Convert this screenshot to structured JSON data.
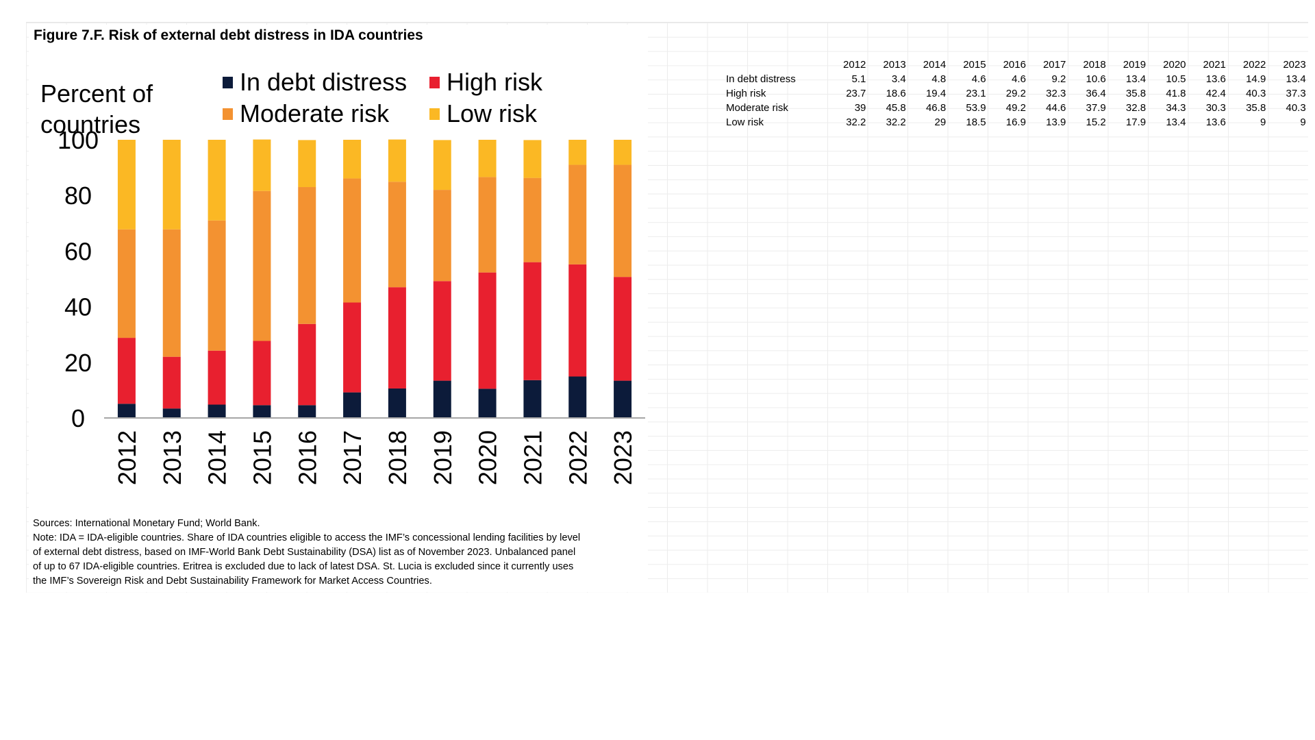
{
  "figure": {
    "title": "Figure 7.F. Risk of external debt distress in IDA countries",
    "sources": "Sources: International Monetary Fund; World Bank.",
    "note_lines": [
      "Note: IDA = IDA-eligible countries. Share of IDA countries eligible to access the IMF’s concessional lending facilities by level",
      "of external debt distress, based on IMF-World Bank Debt Sustainability (DSA) list as of November 2023. Unbalanced panel",
      "of up to 67 IDA-eligible countries. Eritrea is excluded due to lack of latest DSA. St. Lucia is excluded since it currently uses",
      "the IMF’s Sovereign Risk and Debt Sustainability Framework for Market Access Countries."
    ]
  },
  "chart_data": {
    "type": "bar",
    "stacked": true,
    "ylabel_lines": [
      "Percent of",
      "countries"
    ],
    "categories": [
      "2012",
      "2013",
      "2014",
      "2015",
      "2016",
      "2017",
      "2018",
      "2019",
      "2020",
      "2021",
      "2022",
      "2023"
    ],
    "ylim": [
      0,
      100
    ],
    "yticks": [
      0,
      20,
      40,
      60,
      80,
      100
    ],
    "grid": false,
    "legend_position": "top",
    "series": [
      {
        "name": "In debt distress",
        "color": "#0c1b3a",
        "values": [
          5.1,
          3.4,
          4.8,
          4.6,
          4.6,
          9.2,
          10.6,
          13.4,
          10.5,
          13.6,
          14.9,
          13.4
        ]
      },
      {
        "name": "High risk",
        "color": "#e8202f",
        "values": [
          23.7,
          18.6,
          19.4,
          23.1,
          29.2,
          32.3,
          36.4,
          35.8,
          41.8,
          42.4,
          40.3,
          37.3
        ]
      },
      {
        "name": "Moderate risk",
        "color": "#f39231",
        "values": [
          39,
          45.8,
          46.8,
          53.9,
          49.2,
          44.6,
          37.9,
          32.8,
          34.3,
          30.3,
          35.8,
          40.3
        ]
      },
      {
        "name": "Low risk",
        "color": "#fbb824",
        "values": [
          32.2,
          32.2,
          29,
          18.5,
          16.9,
          13.9,
          15.2,
          17.9,
          13.4,
          13.6,
          9,
          9
        ]
      }
    ]
  }
}
